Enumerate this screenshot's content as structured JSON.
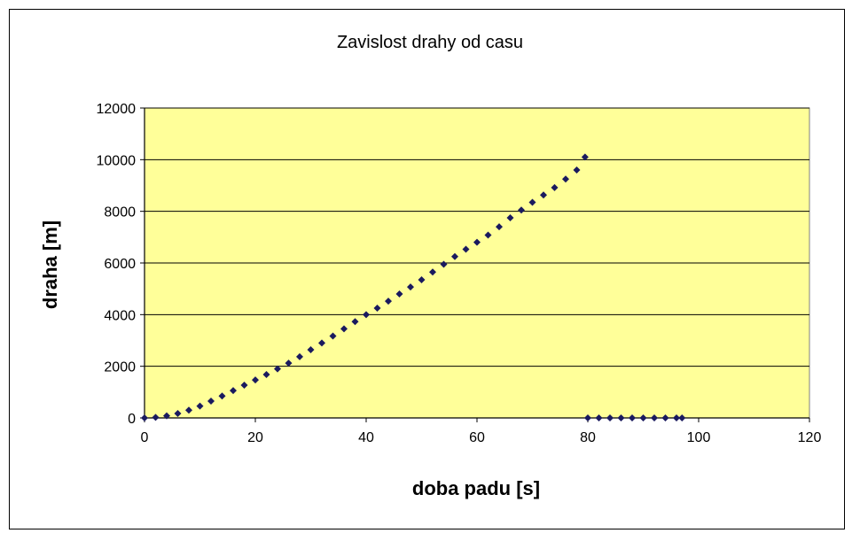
{
  "chart_data": {
    "type": "scatter",
    "title": "Zavislost drahy od casu",
    "xlabel": "doba padu [s]",
    "ylabel": "draha [m]",
    "xlim": [
      0,
      120
    ],
    "ylim": [
      0,
      12000
    ],
    "x_ticks": [
      0,
      20,
      40,
      60,
      80,
      100,
      120
    ],
    "y_ticks": [
      0,
      2000,
      4000,
      6000,
      8000,
      10000,
      12000
    ],
    "grid": "horizontal",
    "legend": "none",
    "colors": {
      "plot_area": "#ffff99",
      "marker": "#1a1a5e",
      "gridline": "#000000"
    },
    "series": [
      {
        "x": [
          0,
          2,
          4,
          6,
          8,
          10,
          12,
          14,
          16,
          18,
          20,
          22,
          24,
          26,
          28,
          30,
          32,
          34,
          36,
          38,
          40,
          42,
          44,
          46,
          48,
          50,
          52,
          54,
          56,
          58,
          60,
          62,
          64,
          66,
          68,
          70,
          72,
          74,
          76,
          78,
          79.5,
          80,
          82,
          84,
          86,
          88,
          90,
          92,
          94,
          96,
          97
        ],
        "y": [
          0,
          20,
          80,
          170,
          300,
          460,
          650,
          850,
          1060,
          1270,
          1470,
          1680,
          1900,
          2120,
          2370,
          2640,
          2900,
          3170,
          3450,
          3730,
          4000,
          4250,
          4520,
          4800,
          5070,
          5350,
          5650,
          5950,
          6250,
          6530,
          6800,
          7080,
          7400,
          7750,
          8050,
          8350,
          8630,
          8920,
          9250,
          9600,
          10100,
          0,
          0,
          0,
          0,
          0,
          0,
          0,
          0,
          0,
          0
        ]
      }
    ]
  }
}
